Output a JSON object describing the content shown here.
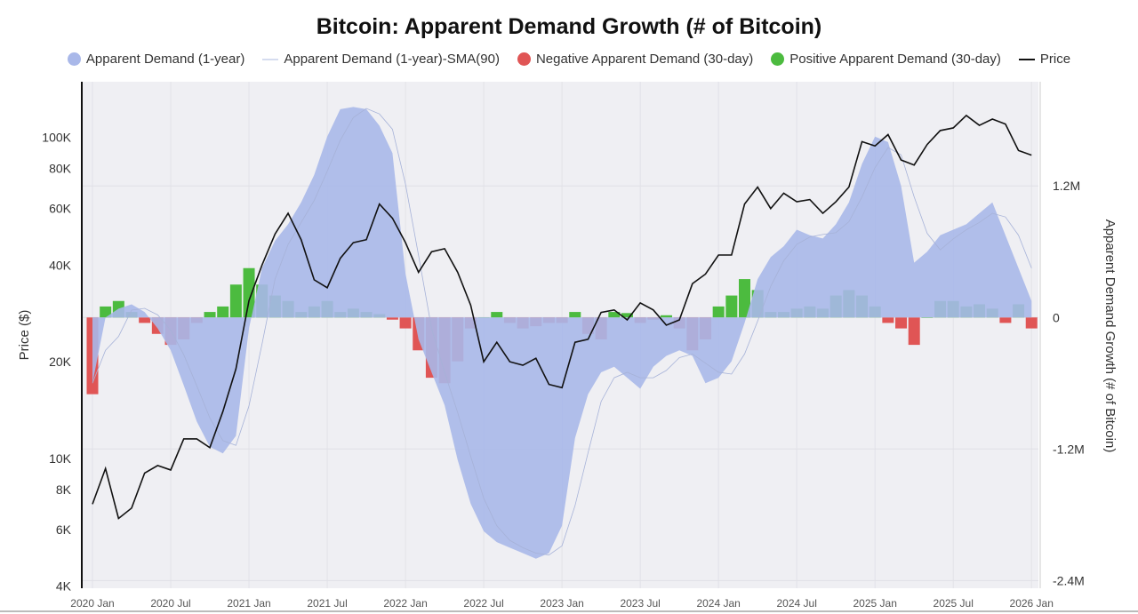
{
  "chart_data": {
    "type": "area",
    "title": "Bitcoin: Apparent Demand Growth (# of Bitcoin)",
    "legend_placement": "top",
    "legend": [
      {
        "label": "Apparent Demand (1-year)",
        "color": "#a9b8e9",
        "kind": "dot"
      },
      {
        "label": "Apparent Demand (1-year)-SMA(90)",
        "color": "#c9d2ee",
        "kind": "line"
      },
      {
        "label": "Negative Apparent Demand (30-day)",
        "color": "#e05555",
        "kind": "dot"
      },
      {
        "label": "Positive Apparent Demand (30-day)",
        "color": "#4cbb3f",
        "kind": "dot"
      },
      {
        "label": "Price",
        "color": "#111111",
        "kind": "line"
      }
    ],
    "ylabel_left": "Price ($)",
    "ylabel_right": "Apparent Demand Growth (# of Bitcoin)",
    "y_left_scale": "log",
    "y_left_range": [
      3940,
      149000
    ],
    "y_left_ticks": [
      {
        "v": 100000,
        "label": "100K"
      },
      {
        "v": 80000,
        "label": "80K"
      },
      {
        "v": 60000,
        "label": "60K"
      },
      {
        "v": 40000,
        "label": "40K"
      },
      {
        "v": 20000,
        "label": "20K"
      },
      {
        "v": 10000,
        "label": "10K"
      },
      {
        "v": 8000,
        "label": "8K"
      },
      {
        "v": 6000,
        "label": "6K"
      },
      {
        "v": 4000,
        "label": "4K"
      }
    ],
    "y_right_range_millions": [
      -2.47,
      2.15
    ],
    "y_right_ticks": [
      {
        "v": 1.2,
        "label": "1.2M"
      },
      {
        "v": 0,
        "label": "0"
      },
      {
        "v": -1.2,
        "label": "-1.2M"
      },
      {
        "v": -2.4,
        "label": "-2.4M"
      }
    ],
    "x_ticks": [
      "2020 Jan",
      "2020 Jul",
      "2021 Jan",
      "2021 Jul",
      "2022 Jan",
      "2022 Jul",
      "2023 Jan",
      "2023 Jul",
      "2024 Jan",
      "2024 Jul",
      "2025 Jan",
      "2025 Jul",
      "2026 Jan"
    ],
    "x_start": "2020-01",
    "x_step": "1 month",
    "grid": true,
    "sma_window_days": 90,
    "price_usd": [
      7200,
      9300,
      6500,
      7000,
      9000,
      9500,
      9200,
      11500,
      11500,
      10800,
      14000,
      19000,
      31000,
      40000,
      50000,
      58000,
      48000,
      36000,
      34000,
      42000,
      47000,
      48000,
      62000,
      56000,
      47000,
      38000,
      44000,
      45000,
      38000,
      30000,
      20000,
      23000,
      20000,
      19500,
      20500,
      17000,
      16600,
      23000,
      23500,
      28500,
      29000,
      27000,
      30500,
      29000,
      26000,
      27000,
      35000,
      37500,
      43000,
      43000,
      62000,
      70000,
      60000,
      67000,
      63000,
      64000,
      58000,
      63000,
      70000,
      97000,
      94000,
      102000,
      85000,
      82000,
      95000,
      105000,
      107000,
      117000,
      109000,
      114000,
      110000,
      91000,
      88000
    ],
    "apparent_demand_1y_millions": [
      -0.6,
      0.0,
      0.08,
      0.12,
      0.05,
      -0.1,
      -0.3,
      -0.62,
      -0.95,
      -1.18,
      -1.24,
      -1.08,
      -0.1,
      0.45,
      0.7,
      0.85,
      1.05,
      1.3,
      1.65,
      1.9,
      1.92,
      1.9,
      1.75,
      1.5,
      0.4,
      -0.2,
      -0.5,
      -0.8,
      -1.3,
      -1.7,
      -1.95,
      -2.05,
      -2.1,
      -2.15,
      -2.2,
      -2.15,
      -1.9,
      -1.1,
      -0.7,
      -0.5,
      -0.45,
      -0.55,
      -0.65,
      -0.45,
      -0.35,
      -0.3,
      -0.35,
      -0.6,
      -0.55,
      -0.4,
      -0.05,
      0.35,
      0.55,
      0.65,
      0.8,
      0.75,
      0.72,
      0.85,
      1.05,
      1.4,
      1.65,
      1.6,
      1.2,
      0.5,
      0.6,
      0.75,
      0.8,
      0.85,
      0.95,
      1.05,
      0.75,
      0.45,
      0.15
    ],
    "apparent_demand_30d_millions": [
      -0.7,
      0.1,
      0.15,
      0.05,
      -0.05,
      -0.15,
      -0.25,
      -0.2,
      -0.05,
      0.05,
      0.1,
      0.3,
      0.45,
      0.3,
      0.2,
      0.15,
      0.05,
      0.1,
      0.15,
      0.05,
      0.08,
      0.05,
      0.03,
      -0.02,
      -0.1,
      -0.3,
      -0.55,
      -0.6,
      -0.4,
      -0.1,
      0.0,
      0.05,
      -0.05,
      -0.1,
      -0.08,
      -0.05,
      -0.05,
      0.05,
      -0.15,
      -0.2,
      0.05,
      0.04,
      -0.05,
      -0.02,
      0.02,
      -0.1,
      -0.3,
      -0.2,
      0.1,
      0.2,
      0.35,
      0.25,
      0.05,
      0.05,
      0.08,
      0.1,
      0.08,
      0.2,
      0.25,
      0.2,
      0.1,
      -0.05,
      -0.1,
      -0.25,
      0.0,
      0.15,
      0.15,
      0.1,
      0.12,
      0.08,
      -0.05,
      0.12,
      -0.1
    ]
  }
}
